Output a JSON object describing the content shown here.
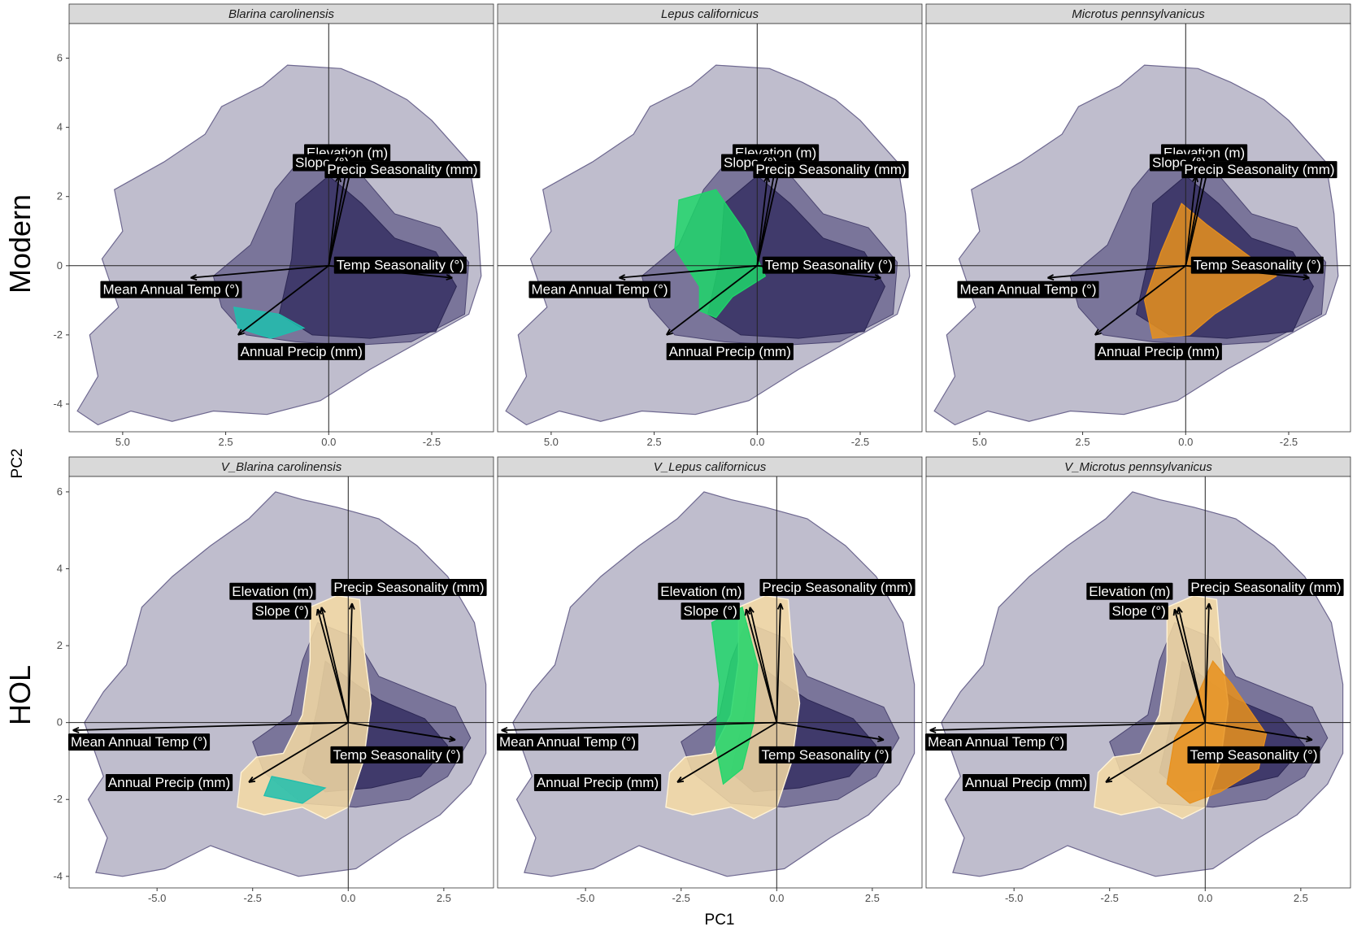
{
  "figure": {
    "x_axis_title": "PC1",
    "y_axis_title": "PC2",
    "row_labels": [
      "Modern",
      "HOL"
    ]
  },
  "colors": {
    "background_density": "#8b86a4",
    "density_dark": "#3a3466",
    "strip_fill": "#d9d9d9",
    "blarina": "#1fbfae",
    "lepus": "#1fd66a",
    "microtus": "#e8901c",
    "holocene": "#f5dba3"
  },
  "chart_data": [
    {
      "type": "scatter",
      "title": "Blarina carolinensis",
      "row": "Modern",
      "x_direction": "reversed",
      "xlim": [
        6.3,
        -4.0
      ],
      "ylim": [
        -4.8,
        7.0
      ],
      "x_ticks": [
        "5.0",
        "2.5",
        "0.0",
        "-2.5"
      ],
      "y_ticks": [
        "6",
        "4",
        "2",
        "0",
        "-2",
        "-4"
      ],
      "species_color": "#1fbfae",
      "vectors": [
        {
          "label": "Elevation (m)",
          "x": -0.45,
          "y": 2.9
        },
        {
          "label": "Slope (°)",
          "x": -0.55,
          "y": 2.85
        },
        {
          "label": "Precip Seasonality (mm)",
          "x": -0.25,
          "y": 2.6
        },
        {
          "label": "Temp Seasonality (°)",
          "x": -3.0,
          "y": -0.35
        },
        {
          "label": "Mean Annual Temp (°)",
          "x": 3.35,
          "y": -0.35
        },
        {
          "label": "Annual Precip (mm)",
          "x": 2.2,
          "y": -2.0
        }
      ]
    },
    {
      "type": "scatter",
      "title": "Lepus californicus",
      "row": "Modern",
      "x_direction": "reversed",
      "xlim": [
        6.3,
        -4.0
      ],
      "ylim": [
        -4.8,
        7.0
      ],
      "x_ticks": [
        "5.0",
        "2.5",
        "0.0",
        "-2.5"
      ],
      "y_ticks": [
        "6",
        "4",
        "2",
        "0",
        "-2",
        "-4"
      ],
      "species_color": "#1fd66a",
      "vectors": [
        {
          "label": "Elevation (m)",
          "x": -0.45,
          "y": 2.9
        },
        {
          "label": "Slope (°)",
          "x": -0.55,
          "y": 2.85
        },
        {
          "label": "Precip Seasonality (mm)",
          "x": -0.25,
          "y": 2.6
        },
        {
          "label": "Temp Seasonality (°)",
          "x": -3.0,
          "y": -0.35
        },
        {
          "label": "Mean Annual Temp (°)",
          "x": 3.35,
          "y": -0.35
        },
        {
          "label": "Annual Precip (mm)",
          "x": 2.2,
          "y": -2.0
        }
      ]
    },
    {
      "type": "scatter",
      "title": "Microtus pennsylvanicus",
      "row": "Modern",
      "x_direction": "reversed",
      "xlim": [
        6.3,
        -4.0
      ],
      "ylim": [
        -4.8,
        7.0
      ],
      "x_ticks": [
        "5.0",
        "2.5",
        "0.0",
        "-2.5"
      ],
      "y_ticks": [
        "6",
        "4",
        "2",
        "0",
        "-2",
        "-4"
      ],
      "species_color": "#e8901c",
      "vectors": [
        {
          "label": "Elevation (m)",
          "x": -0.45,
          "y": 2.9
        },
        {
          "label": "Slope (°)",
          "x": -0.55,
          "y": 2.85
        },
        {
          "label": "Precip Seasonality (mm)",
          "x": -0.25,
          "y": 2.6
        },
        {
          "label": "Temp Seasonality (°)",
          "x": -3.0,
          "y": -0.35
        },
        {
          "label": "Mean Annual Temp (°)",
          "x": 3.35,
          "y": -0.35
        },
        {
          "label": "Annual Precip (mm)",
          "x": 2.2,
          "y": -2.0
        }
      ]
    },
    {
      "type": "scatter",
      "title": "V_Blarina carolinensis",
      "row": "HOL",
      "x_direction": "normal",
      "xlim": [
        -7.3,
        3.8
      ],
      "ylim": [
        -4.3,
        6.4
      ],
      "x_ticks": [
        "-5.0",
        "-2.5",
        "0.0",
        "2.5"
      ],
      "y_ticks": [
        "6",
        "4",
        "2",
        "0",
        "-2",
        "-4"
      ],
      "species_color": "#1fbfae",
      "vectors": [
        {
          "label": "Elevation (m)",
          "x": -0.7,
          "y": 3.0
        },
        {
          "label": "Slope (°)",
          "x": -0.8,
          "y": 2.95
        },
        {
          "label": "Precip Seasonality (mm)",
          "x": 0.1,
          "y": 3.1
        },
        {
          "label": "Temp Seasonality (°)",
          "x": 2.8,
          "y": -0.45
        },
        {
          "label": "Mean Annual Temp (°)",
          "x": -7.2,
          "y": -0.2
        },
        {
          "label": "Annual Precip (mm)",
          "x": -2.6,
          "y": -1.55
        }
      ]
    },
    {
      "type": "scatter",
      "title": "V_Lepus californicus",
      "row": "HOL",
      "x_direction": "normal",
      "xlim": [
        -7.3,
        3.8
      ],
      "ylim": [
        -4.3,
        6.4
      ],
      "x_ticks": [
        "-5.0",
        "-2.5",
        "0.0",
        "2.5"
      ],
      "y_ticks": [
        "6",
        "4",
        "2",
        "0",
        "-2",
        "-4"
      ],
      "species_color": "#1fd66a",
      "vectors": [
        {
          "label": "Elevation (m)",
          "x": -0.7,
          "y": 3.0
        },
        {
          "label": "Slope (°)",
          "x": -0.8,
          "y": 2.95
        },
        {
          "label": "Precip Seasonality (mm)",
          "x": 0.1,
          "y": 3.1
        },
        {
          "label": "Temp Seasonality (°)",
          "x": 2.8,
          "y": -0.45
        },
        {
          "label": "Mean Annual Temp (°)",
          "x": -7.2,
          "y": -0.2
        },
        {
          "label": "Annual Precip (mm)",
          "x": -2.6,
          "y": -1.55
        }
      ]
    },
    {
      "type": "scatter",
      "title": "V_Microtus pennsylvanicus",
      "row": "HOL",
      "x_direction": "normal",
      "xlim": [
        -7.3,
        3.8
      ],
      "ylim": [
        -4.3,
        6.4
      ],
      "x_ticks": [
        "-5.0",
        "-2.5",
        "0.0",
        "2.5"
      ],
      "y_ticks": [
        "6",
        "4",
        "2",
        "0",
        "-2",
        "-4"
      ],
      "species_color": "#e8901c",
      "vectors": [
        {
          "label": "Elevation (m)",
          "x": -0.7,
          "y": 3.0
        },
        {
          "label": "Slope (°)",
          "x": -0.8,
          "y": 2.95
        },
        {
          "label": "Precip Seasonality (mm)",
          "x": 0.1,
          "y": 3.1
        },
        {
          "label": "Temp Seasonality (°)",
          "x": 2.8,
          "y": -0.45
        },
        {
          "label": "Mean Annual Temp (°)",
          "x": -7.2,
          "y": -0.2
        },
        {
          "label": "Annual Precip (mm)",
          "x": -2.6,
          "y": -1.55
        }
      ]
    }
  ]
}
